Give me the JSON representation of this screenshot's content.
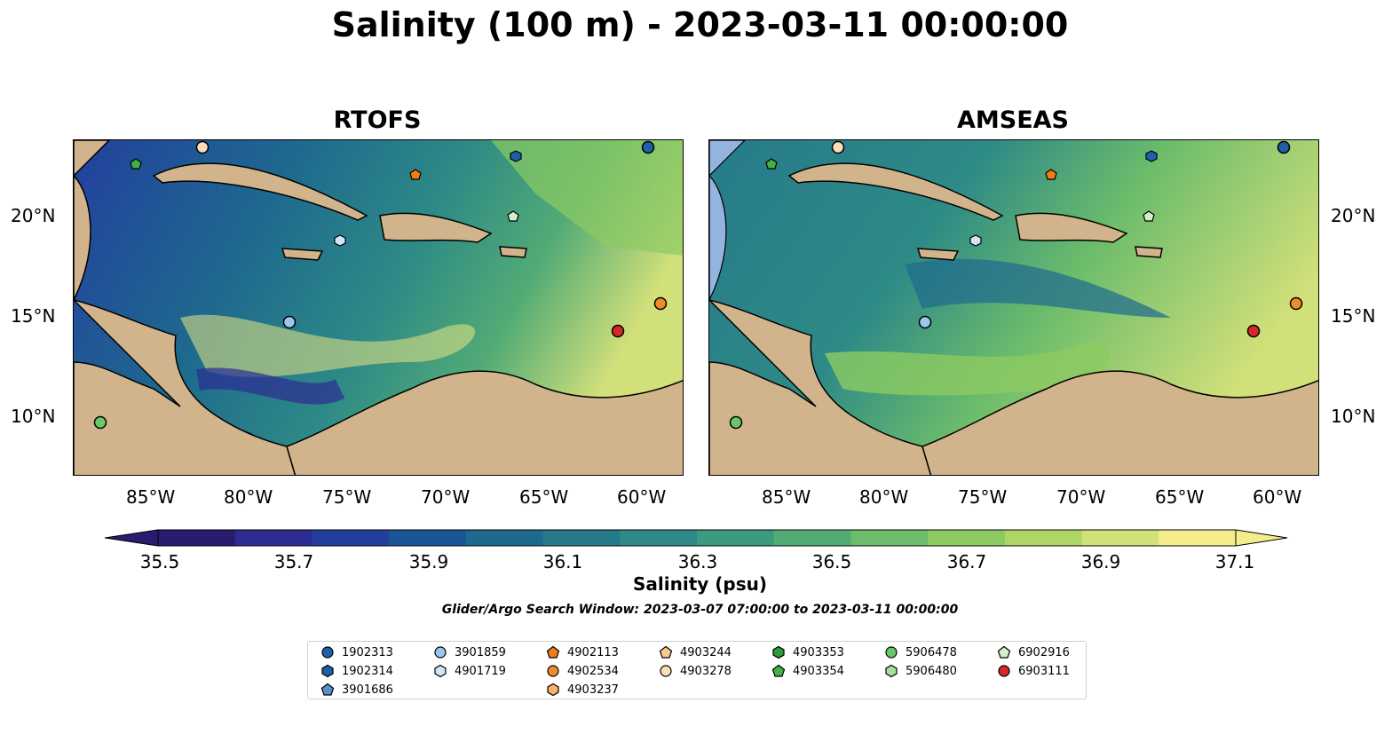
{
  "suptitle": "Salinity (100 m) - 2023-03-11 00:00:00",
  "panels": [
    {
      "title": "RTOFS"
    },
    {
      "title": "AMSEAS"
    }
  ],
  "lon_labels": [
    "85°W",
    "80°W",
    "75°W",
    "70°W",
    "65°W",
    "60°W"
  ],
  "lat_labels": [
    "20°N",
    "15°N",
    "10°N"
  ],
  "colorbar": {
    "label": "Salinity (psu)",
    "ticks": [
      "35.5",
      "35.7",
      "35.9",
      "36.1",
      "36.3",
      "36.5",
      "36.7",
      "36.9",
      "37.1"
    ],
    "colors": [
      "#2a1b6e",
      "#2c2c93",
      "#233f9e",
      "#1c5596",
      "#1e6a8e",
      "#267a8a",
      "#2e8a86",
      "#3b9a80",
      "#52ab75",
      "#6cbc6b",
      "#8ccb62",
      "#aed666",
      "#d2e07a",
      "#f5ec8a"
    ]
  },
  "search_window": "Glider/Argo Search Window: 2023-03-07 07:00:00 to 2023-03-11 00:00:00",
  "land_color": "#d2b48c",
  "shelf_color": "#94b4e0",
  "legend": [
    {
      "id": "1902313",
      "color": "#1f5fa8",
      "marker": "circle"
    },
    {
      "id": "1902314",
      "color": "#1f5fa8",
      "marker": "hexagon"
    },
    {
      "id": "3901686",
      "color": "#5a8fd0",
      "marker": "pentagon"
    },
    {
      "id": "3901859",
      "color": "#9cc6ec",
      "marker": "circle"
    },
    {
      "id": "4901719",
      "color": "#cfe6f7",
      "marker": "hexagon"
    },
    {
      "id": "4902113",
      "color": "#f07d14",
      "marker": "pentagon"
    },
    {
      "id": "4902534",
      "color": "#f08a2a",
      "marker": "circle"
    },
    {
      "id": "4903237",
      "color": "#fbb06a",
      "marker": "hexagon"
    },
    {
      "id": "4903244",
      "color": "#fbc890",
      "marker": "pentagon"
    },
    {
      "id": "4903278",
      "color": "#fddcb8",
      "marker": "circle"
    },
    {
      "id": "4903353",
      "color": "#2e9a38",
      "marker": "hexagon"
    },
    {
      "id": "4903354",
      "color": "#44b04a",
      "marker": "pentagon"
    },
    {
      "id": "5906478",
      "color": "#6cc66a",
      "marker": "circle"
    },
    {
      "id": "5906480",
      "color": "#a6e0a0",
      "marker": "hexagon"
    },
    {
      "id": "6902916",
      "color": "#cff0c8",
      "marker": "pentagon"
    },
    {
      "id": "6903111",
      "color": "#d62728",
      "marker": "circle"
    }
  ]
}
